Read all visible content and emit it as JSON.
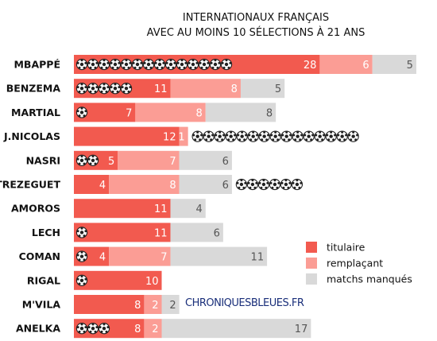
{
  "chart_data": {
    "type": "bar",
    "stacked": true,
    "orientation": "horizontal",
    "title": "INTERNATIONAUX FRANÇAIS",
    "subtitle": "AVEC AU MOINS 10 SÉLECTIONS À 21 ANS",
    "categories": [
      "MBAPPÉ",
      "BENZEMA",
      "MARTIAL",
      "J.NICOLAS",
      "NASRI",
      "TREZEGUET",
      "AMOROS",
      "LECH",
      "COMAN",
      "RIGAL",
      "M'VILA",
      "ANELKA"
    ],
    "series": [
      {
        "name": "titulaire",
        "color": "#f25a4f",
        "values": [
          28,
          11,
          7,
          12,
          5,
          4,
          11,
          11,
          4,
          10,
          8,
          8
        ]
      },
      {
        "name": "remplaçant",
        "color": "#fb9d95",
        "values": [
          6,
          8,
          8,
          1,
          7,
          8,
          0,
          0,
          7,
          0,
          2,
          2
        ]
      },
      {
        "name": "matchs manqués",
        "color": "#d9d9d9",
        "values": [
          5,
          5,
          8,
          0,
          6,
          6,
          4,
          6,
          11,
          0,
          2,
          17
        ]
      }
    ],
    "goals": [
      14,
      5,
      1,
      15,
      2,
      6,
      0,
      1,
      1,
      1,
      0,
      3
    ],
    "goals_icon": "soccer-ball-icon",
    "legend_position": "right"
  },
  "watermark": "CHRONIQUESBLEUES.FR"
}
